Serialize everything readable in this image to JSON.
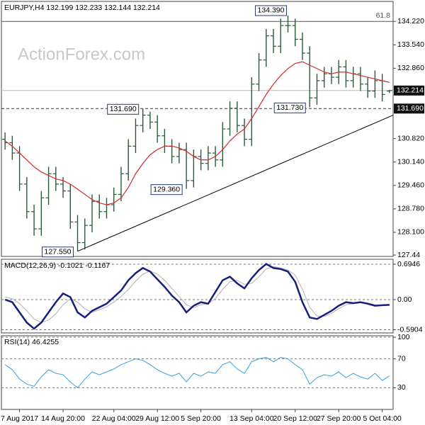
{
  "chart_data": [
    {
      "type": "ohlc",
      "title": "EURJPY,H4  132.199 132.233 132.144 132.214",
      "watermark": "ActionForex.com",
      "categories": [
        null,
        null,
        "7 Aug 2017",
        null,
        null,
        null,
        null,
        null,
        "14 Aug 20:00",
        null,
        null,
        null,
        null,
        null,
        null,
        "22 Aug 04:00",
        null,
        null,
        null,
        null,
        null,
        "29 Aug 12:00",
        null,
        null,
        null,
        null,
        null,
        "5 Sep 20:00",
        null,
        null,
        null,
        null,
        null,
        null,
        "13 Sep 04:00",
        null,
        null,
        null,
        null,
        null,
        "20 Sep 12:00",
        null,
        null,
        null,
        null,
        null,
        "27 Sep 20:00",
        null,
        null,
        null,
        null,
        null,
        "5 Oct 04:00",
        null
      ],
      "color": "#2b5a3a",
      "ohlc": [
        [
          130.8,
          131.0,
          130.5,
          130.7
        ],
        [
          130.7,
          130.9,
          130.2,
          130.4
        ],
        [
          130.4,
          130.6,
          129.3,
          129.5
        ],
        [
          129.5,
          129.7,
          128.5,
          128.7
        ],
        [
          128.7,
          128.9,
          128.0,
          128.2
        ],
        [
          128.2,
          129.3,
          128.0,
          129.1
        ],
        [
          129.1,
          130.0,
          128.9,
          129.8
        ],
        [
          129.8,
          130.0,
          129.3,
          129.5
        ],
        [
          129.5,
          129.7,
          129.1,
          129.3
        ],
        [
          129.3,
          129.5,
          128.2,
          128.4
        ],
        [
          128.4,
          128.6,
          127.55,
          127.8
        ],
        [
          127.8,
          128.5,
          127.6,
          128.3
        ],
        [
          128.3,
          129.2,
          128.1,
          129.0
        ],
        [
          129.0,
          129.2,
          128.5,
          128.7
        ],
        [
          128.7,
          129.1,
          128.5,
          128.9
        ],
        [
          128.9,
          129.4,
          128.7,
          129.2
        ],
        [
          129.2,
          130.0,
          129.0,
          129.8
        ],
        [
          129.8,
          130.8,
          129.6,
          130.6
        ],
        [
          130.6,
          131.4,
          130.4,
          131.2
        ],
        [
          131.2,
          131.69,
          131.0,
          131.5
        ],
        [
          131.5,
          131.6,
          131.1,
          131.3
        ],
        [
          131.3,
          131.5,
          130.7,
          130.9
        ],
        [
          130.9,
          131.1,
          130.4,
          130.6
        ],
        [
          130.6,
          130.8,
          130.1,
          130.3
        ],
        [
          130.3,
          130.7,
          130.1,
          130.5
        ],
        [
          130.5,
          130.7,
          129.36,
          129.6
        ],
        [
          129.6,
          130.5,
          129.4,
          130.3
        ],
        [
          130.3,
          130.5,
          129.9,
          130.1
        ],
        [
          130.1,
          130.6,
          129.9,
          130.4
        ],
        [
          130.4,
          130.6,
          130.0,
          130.2
        ],
        [
          130.2,
          131.3,
          130.0,
          131.1
        ],
        [
          131.1,
          131.9,
          130.9,
          131.7
        ],
        [
          131.7,
          131.9,
          131.0,
          131.2
        ],
        [
          131.2,
          131.4,
          130.6,
          130.8
        ],
        [
          130.8,
          132.6,
          130.6,
          132.4
        ],
        [
          132.4,
          133.3,
          132.2,
          133.1
        ],
        [
          133.1,
          134.0,
          132.9,
          133.8
        ],
        [
          133.8,
          134.0,
          133.3,
          133.5
        ],
        [
          133.5,
          134.3,
          133.3,
          134.1
        ],
        [
          134.1,
          134.39,
          133.9,
          134.1
        ],
        [
          134.1,
          134.3,
          133.5,
          133.7
        ],
        [
          133.7,
          133.9,
          133.1,
          133.3
        ],
        [
          133.3,
          133.5,
          131.73,
          132.0
        ],
        [
          132.0,
          132.7,
          131.8,
          132.5
        ],
        [
          132.5,
          132.9,
          132.3,
          132.7
        ],
        [
          132.7,
          132.9,
          132.4,
          132.6
        ],
        [
          132.6,
          133.1,
          132.4,
          132.9
        ],
        [
          132.9,
          133.1,
          132.3,
          132.5
        ],
        [
          132.5,
          132.9,
          132.3,
          132.7
        ],
        [
          132.7,
          132.9,
          132.2,
          132.4
        ],
        [
          132.4,
          132.6,
          132.0,
          132.2
        ],
        [
          132.2,
          132.8,
          132.0,
          132.5
        ],
        [
          132.5,
          132.7,
          131.9,
          132.1
        ],
        [
          132.199,
          132.233,
          132.144,
          132.214
        ]
      ],
      "ma": {
        "color": "#d42a2a",
        "values": [
          130.75,
          130.6,
          130.4,
          130.2,
          130.0,
          129.85,
          129.75,
          129.65,
          129.6,
          129.5,
          129.35,
          129.2,
          129.05,
          128.95,
          128.9,
          128.95,
          129.1,
          129.4,
          129.8,
          130.1,
          130.35,
          130.5,
          130.6,
          130.6,
          130.55,
          130.45,
          130.3,
          130.2,
          130.2,
          130.3,
          130.5,
          130.75,
          130.95,
          131.1,
          131.4,
          131.75,
          132.1,
          132.4,
          132.65,
          132.85,
          133.0,
          133.05,
          132.95,
          132.85,
          132.75,
          132.7,
          132.75,
          132.75,
          132.7,
          132.65,
          132.6,
          132.55,
          132.5,
          132.45
        ]
      },
      "ylim": [
        127.4,
        134.8
      ],
      "yticks": [
        {
          "value": 134.22,
          "label": "134.220"
        },
        {
          "value": 133.54,
          "label": "133.540"
        },
        {
          "value": 132.86,
          "label": "132.860"
        },
        {
          "value": 130.82,
          "label": "130.820"
        },
        {
          "value": 130.14,
          "label": "130.140"
        },
        {
          "value": 129.46,
          "label": "129.460"
        },
        {
          "value": 128.78,
          "label": "128.780"
        },
        {
          "value": 128.1,
          "label": "128.100"
        },
        127.44
      ],
      "levels": [
        {
          "value": 134.22,
          "label": "61.8",
          "color": "#555555",
          "dashed": false,
          "box": false
        },
        {
          "value": 132.214,
          "label": "132.214",
          "color": "#bbbbbb",
          "dashed": false,
          "box": true
        },
        {
          "value": 131.69,
          "label": "131.690",
          "color": "#333333",
          "dashed": true,
          "box": true
        }
      ],
      "trendline": {
        "color": "#000000",
        "x": [
          10,
          53.5
        ],
        "y": [
          127.55,
          131.5
        ]
      },
      "annotations": [
        {
          "label": "134.390",
          "value": 134.39,
          "index": 39
        },
        {
          "label": "131.690",
          "value": 131.69,
          "index": 19
        },
        {
          "label": "131.730",
          "value": 131.73,
          "index": 42
        },
        {
          "label": "129.360",
          "value": 129.36,
          "index": 25
        },
        {
          "label": "127.550",
          "value": 127.55,
          "index": 10
        }
      ]
    },
    {
      "type": "line",
      "title": "MACD(12,26,9) -0.1021 -0.1167",
      "ylim": [
        -0.653,
        0.792
      ],
      "yticks": [
        0.6946,
        {
          "value": 0,
          "label": "0.00"
        },
        -0.5904
      ],
      "grid": true,
      "series": [
        {
          "color": "#b0b0b0",
          "width": 1,
          "values": [
            0.05,
            0.02,
            -0.08,
            -0.22,
            -0.38,
            -0.45,
            -0.4,
            -0.28,
            -0.1,
            0.02,
            -0.05,
            -0.18,
            -0.25,
            -0.2,
            -0.14,
            -0.05,
            0.06,
            0.2,
            0.36,
            0.5,
            0.56,
            0.5,
            0.38,
            0.22,
            0.06,
            -0.1,
            -0.16,
            -0.1,
            -0.08,
            0.02,
            0.2,
            0.35,
            0.38,
            0.3,
            0.32,
            0.45,
            0.6,
            0.65,
            0.62,
            0.58,
            0.48,
            0.2,
            -0.15,
            -0.32,
            -0.33,
            -0.27,
            -0.18,
            -0.1,
            -0.08,
            -0.06,
            -0.07,
            -0.1,
            -0.11,
            -0.1167
          ]
        },
        {
          "color": "#16207a",
          "width": 2.5,
          "values": [
            0.0,
            -0.05,
            -0.25,
            -0.45,
            -0.57,
            -0.45,
            -0.25,
            -0.05,
            0.12,
            0.05,
            -0.25,
            -0.35,
            -0.22,
            -0.15,
            -0.08,
            0.05,
            0.18,
            0.38,
            0.52,
            0.62,
            0.55,
            0.4,
            0.25,
            0.08,
            -0.05,
            -0.25,
            -0.12,
            -0.05,
            -0.08,
            0.15,
            0.38,
            0.45,
            0.32,
            0.22,
            0.42,
            0.58,
            0.7,
            0.62,
            0.6,
            0.55,
            0.35,
            -0.05,
            -0.35,
            -0.38,
            -0.3,
            -0.22,
            -0.12,
            -0.05,
            -0.07,
            -0.05,
            -0.08,
            -0.12,
            -0.11,
            -0.1021
          ]
        }
      ]
    },
    {
      "type": "line",
      "title": "RSI(14) 46.4255",
      "ylim": [
        0,
        102
      ],
      "yticks": [
        100,
        70,
        30
      ],
      "grid": true,
      "series": [
        {
          "color": "#3a9ee0",
          "width": 1,
          "values": [
            62,
            55,
            42,
            35,
            32,
            45,
            55,
            50,
            48,
            38,
            30,
            42,
            52,
            48,
            52,
            56,
            62,
            66,
            70,
            68,
            62,
            55,
            50,
            46,
            50,
            38,
            50,
            46,
            52,
            50,
            62,
            66,
            56,
            50,
            66,
            70,
            72,
            66,
            72,
            70,
            62,
            55,
            35,
            44,
            48,
            46,
            52,
            44,
            50,
            45,
            42,
            50,
            40,
            46.4255
          ]
        }
      ]
    }
  ]
}
